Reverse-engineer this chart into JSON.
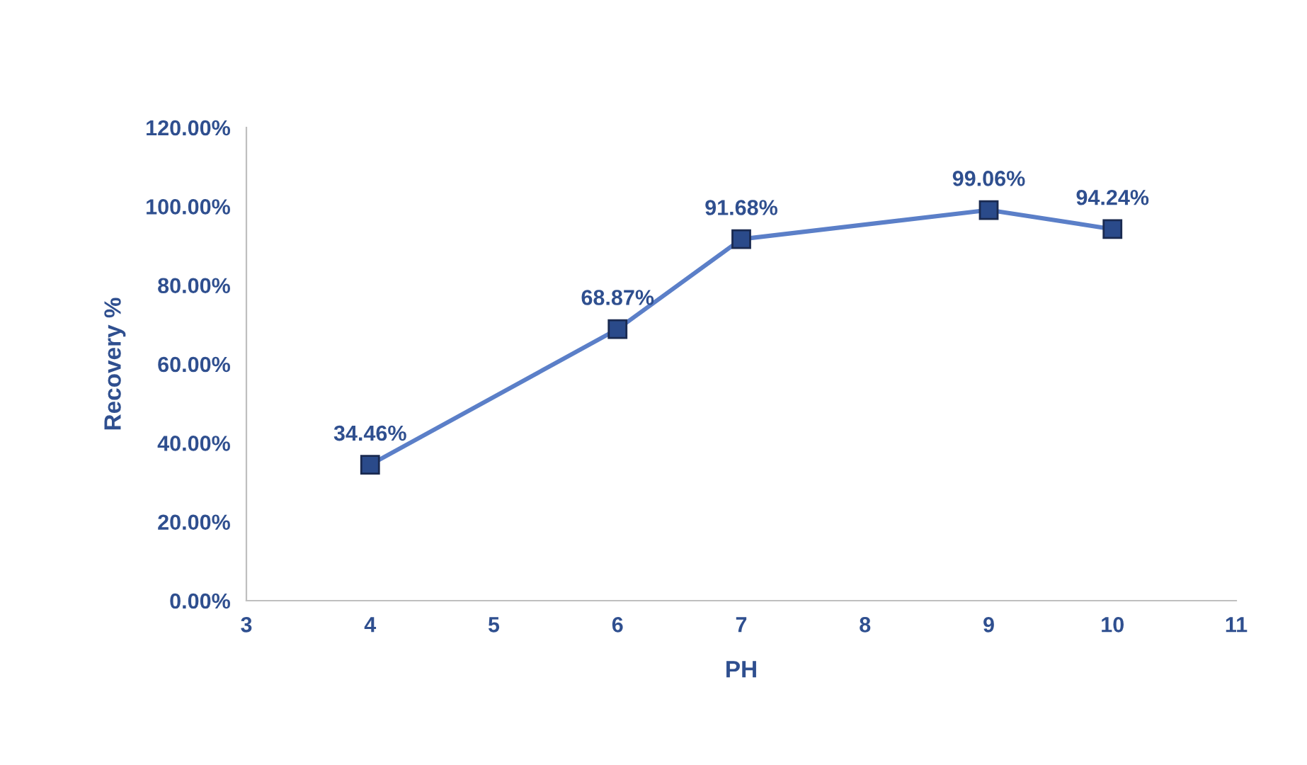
{
  "chart_data": {
    "type": "line",
    "xlabel": "PH",
    "ylabel": "Recovery %",
    "x": [
      4,
      6,
      7,
      9,
      10
    ],
    "series": [
      {
        "color": "#5b7fc8",
        "values": [
          34.46,
          68.87,
          91.68,
          99.06,
          94.24
        ],
        "value_labels": [
          "34.46%",
          "68.87%",
          "91.68%",
          "99.06%",
          "94.24%"
        ]
      }
    ],
    "xlim": [
      3,
      11
    ],
    "xticks": [
      3,
      4,
      5,
      6,
      7,
      8,
      9,
      10,
      11
    ],
    "ylim": [
      0,
      120
    ],
    "yticks": [
      {
        "value": 0,
        "label": "0.00%"
      },
      {
        "value": 20,
        "label": "20.00%"
      },
      {
        "value": 40,
        "label": "40.00%"
      },
      {
        "value": 60,
        "label": "60.00%"
      },
      {
        "value": 80,
        "label": "80.00%"
      },
      {
        "value": 100,
        "label": "100.00%"
      },
      {
        "value": 120,
        "label": "120.00%"
      }
    ],
    "grid": false,
    "marker": "square",
    "line_style": "solid"
  }
}
